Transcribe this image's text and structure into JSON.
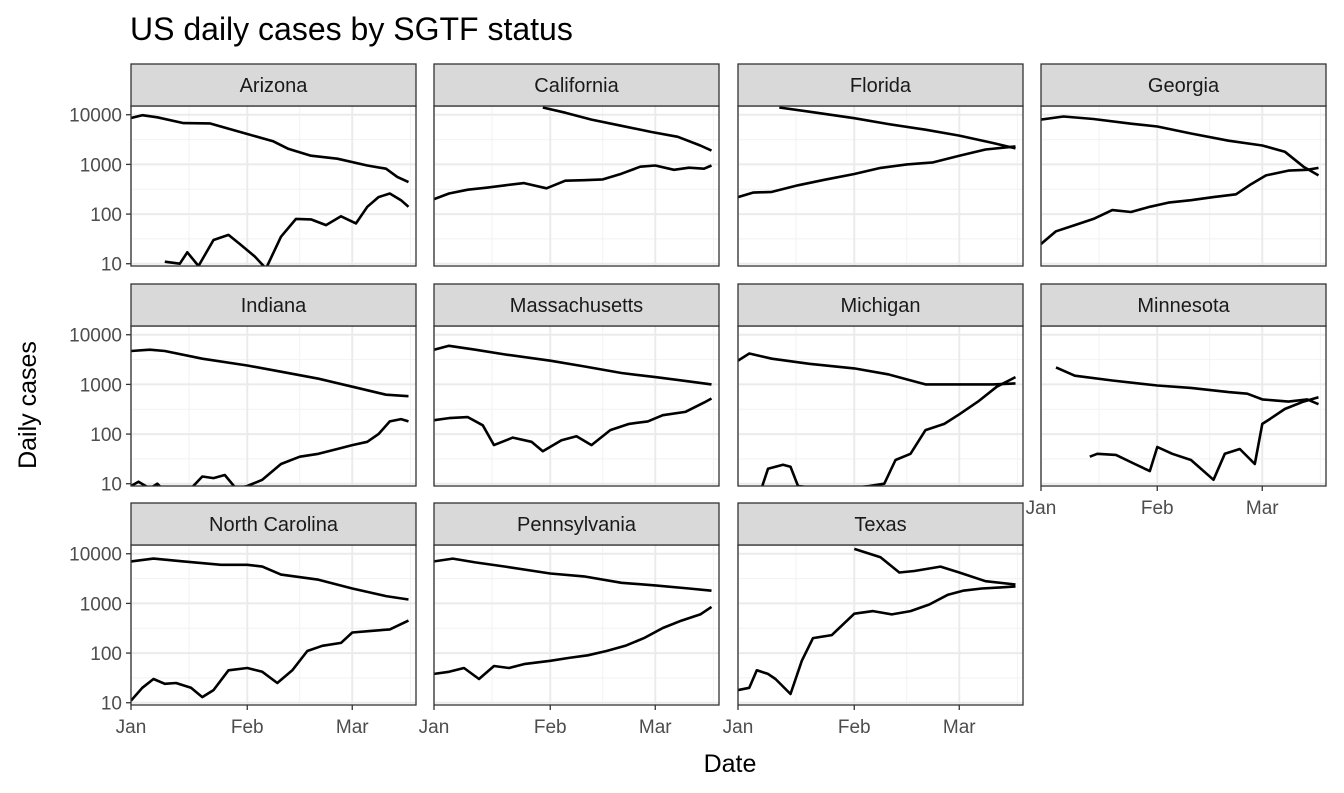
{
  "chart_data": {
    "type": "line",
    "title": "US daily cases by SGTF status",
    "xlabel": "Date",
    "ylabel": "Daily cases",
    "y_scale": "log10",
    "ylim": [
      9,
      15000
    ],
    "xlim": [
      "2021-01-01",
      "2021-03-18"
    ],
    "y_ticks": [
      10,
      100,
      1000,
      10000
    ],
    "y_tick_labels": [
      "10",
      "100",
      "1000",
      "10000"
    ],
    "x_ticks": [
      "2021-01-01",
      "2021-02-01",
      "2021-03-01"
    ],
    "x_tick_labels": [
      "Jan",
      "Feb",
      "Mar"
    ],
    "grid": true,
    "line_color": "#000000",
    "strip_color": "#d9d9d9",
    "facets": [
      {
        "name": "Arizona",
        "series": [
          {
            "x": [
              "2021-01-01",
              "2021-01-04",
              "2021-01-08",
              "2021-01-15",
              "2021-01-22",
              "2021-02-01",
              "2021-02-08",
              "2021-02-12",
              "2021-02-18",
              "2021-02-25",
              "2021-03-05",
              "2021-03-10",
              "2021-03-13",
              "2021-03-16"
            ],
            "y": [
              8600,
              9800,
              8900,
              6800,
              6700,
              4100,
              2900,
              2050,
              1500,
              1300,
              950,
              820,
              560,
              440
            ]
          },
          {
            "x": [
              "2021-01-10",
              "2021-01-14",
              "2021-01-16",
              "2021-01-19",
              "2021-01-23",
              "2021-01-27",
              "2021-01-30",
              "2021-02-03",
              "2021-02-06",
              "2021-02-10",
              "2021-02-14",
              "2021-02-18",
              "2021-02-22",
              "2021-02-26",
              "2021-03-02",
              "2021-03-05",
              "2021-03-08",
              "2021-03-11",
              "2021-03-14",
              "2021-03-16"
            ],
            "y": [
              11,
              10,
              17,
              9,
              30,
              38,
              25,
              14,
              8,
              35,
              80,
              78,
              60,
              90,
              65,
              140,
              220,
              260,
              190,
              140
            ]
          }
        ]
      },
      {
        "name": "California",
        "series": [
          {
            "x": [
              "2021-01-30",
              "2021-02-05",
              "2021-02-12",
              "2021-02-20",
              "2021-02-28",
              "2021-03-07",
              "2021-03-13",
              "2021-03-16"
            ],
            "y": [
              14000,
              11000,
              8000,
              6000,
              4500,
              3600,
              2400,
              1900
            ]
          },
          {
            "x": [
              "2021-01-01",
              "2021-01-05",
              "2021-01-10",
              "2021-01-15",
              "2021-01-20",
              "2021-01-25",
              "2021-01-31",
              "2021-02-05",
              "2021-02-10",
              "2021-02-15",
              "2021-02-20",
              "2021-02-25",
              "2021-03-01",
              "2021-03-06",
              "2021-03-10",
              "2021-03-14",
              "2021-03-16"
            ],
            "y": [
              200,
              260,
              310,
              340,
              380,
              420,
              330,
              470,
              480,
              500,
              650,
              900,
              950,
              780,
              860,
              820,
              950
            ]
          }
        ]
      },
      {
        "name": "Florida",
        "series": [
          {
            "x": [
              "2021-01-12",
              "2021-01-20",
              "2021-02-01",
              "2021-02-10",
              "2021-02-20",
              "2021-03-01",
              "2021-03-10",
              "2021-03-16"
            ],
            "y": [
              14000,
              11500,
              8500,
              6500,
              5000,
              3800,
              2700,
              2100
            ]
          },
          {
            "x": [
              "2021-01-01",
              "2021-01-05",
              "2021-01-10",
              "2021-01-17",
              "2021-01-24",
              "2021-02-01",
              "2021-02-08",
              "2021-02-15",
              "2021-02-22",
              "2021-03-01",
              "2021-03-08",
              "2021-03-16"
            ],
            "y": [
              220,
              270,
              280,
              380,
              490,
              640,
              850,
              1000,
              1100,
              1500,
              2000,
              2300
            ]
          }
        ]
      },
      {
        "name": "Georgia",
        "series": [
          {
            "x": [
              "2021-01-01",
              "2021-01-07",
              "2021-01-15",
              "2021-01-25",
              "2021-02-01",
              "2021-02-10",
              "2021-02-20",
              "2021-03-01",
              "2021-03-07",
              "2021-03-12",
              "2021-03-16"
            ],
            "y": [
              8000,
              9200,
              8200,
              6600,
              5800,
              4200,
              3000,
              2400,
              1800,
              900,
              600
            ]
          },
          {
            "x": [
              "2021-01-01",
              "2021-01-05",
              "2021-01-10",
              "2021-01-15",
              "2021-01-20",
              "2021-01-25",
              "2021-01-30",
              "2021-02-04",
              "2021-02-10",
              "2021-02-16",
              "2021-02-22",
              "2021-02-26",
              "2021-03-02",
              "2021-03-08",
              "2021-03-13",
              "2021-03-16"
            ],
            "y": [
              25,
              45,
              60,
              80,
              120,
              110,
              140,
              170,
              190,
              220,
              250,
              400,
              600,
              750,
              780,
              850
            ]
          }
        ]
      },
      {
        "name": "Indiana",
        "series": [
          {
            "x": [
              "2021-01-01",
              "2021-01-06",
              "2021-01-10",
              "2021-01-20",
              "2021-02-01",
              "2021-02-10",
              "2021-02-20",
              "2021-03-01",
              "2021-03-10",
              "2021-03-16"
            ],
            "y": [
              4700,
              5000,
              4700,
              3300,
              2400,
              1800,
              1300,
              900,
              620,
              580
            ]
          },
          {
            "x": [
              "2021-01-01",
              "2021-01-03",
              "2021-01-06",
              "2021-01-08",
              "2021-01-10",
              "2021-01-17",
              "2021-01-20",
              "2021-01-23",
              "2021-01-26",
              "2021-01-29",
              "2021-02-01",
              "2021-02-05",
              "2021-02-10",
              "2021-02-15",
              "2021-02-20",
              "2021-02-25",
              "2021-03-01",
              "2021-03-05",
              "2021-03-08",
              "2021-03-11",
              "2021-03-14",
              "2021-03-16"
            ],
            "y": [
              9,
              11,
              8,
              10,
              7,
              8,
              14,
              13,
              15,
              8,
              9,
              12,
              25,
              35,
              40,
              50,
              60,
              70,
              100,
              180,
              200,
              180
            ]
          }
        ]
      },
      {
        "name": "Massachusetts",
        "series": [
          {
            "x": [
              "2021-01-01",
              "2021-01-05",
              "2021-01-12",
              "2021-01-20",
              "2021-02-01",
              "2021-02-10",
              "2021-02-20",
              "2021-03-01",
              "2021-03-10",
              "2021-03-16"
            ],
            "y": [
              5000,
              6000,
              5000,
              4000,
              3000,
              2300,
              1700,
              1400,
              1150,
              1000
            ]
          },
          {
            "x": [
              "2021-01-01",
              "2021-01-05",
              "2021-01-10",
              "2021-01-14",
              "2021-01-17",
              "2021-01-22",
              "2021-01-27",
              "2021-01-30",
              "2021-02-04",
              "2021-02-08",
              "2021-02-12",
              "2021-02-17",
              "2021-02-22",
              "2021-02-27",
              "2021-03-03",
              "2021-03-09",
              "2021-03-14",
              "2021-03-16"
            ],
            "y": [
              190,
              210,
              220,
              150,
              60,
              85,
              70,
              45,
              75,
              90,
              60,
              120,
              160,
              180,
              240,
              280,
              430,
              520
            ]
          }
        ]
      },
      {
        "name": "Michigan",
        "series": [
          {
            "x": [
              "2021-01-01",
              "2021-01-04",
              "2021-01-10",
              "2021-01-20",
              "2021-02-01",
              "2021-02-10",
              "2021-02-20",
              "2021-03-01",
              "2021-03-10",
              "2021-03-16"
            ],
            "y": [
              3000,
              4200,
              3300,
              2600,
              2100,
              1600,
              1000,
              1000,
              1000,
              1050
            ]
          },
          {
            "x": [
              "2021-01-07",
              "2021-01-09",
              "2021-01-13",
              "2021-01-15",
              "2021-01-17",
              "2021-01-23",
              "2021-01-30",
              "2021-02-05",
              "2021-02-09",
              "2021-02-12",
              "2021-02-16",
              "2021-02-20",
              "2021-02-25",
              "2021-03-01",
              "2021-03-06",
              "2021-03-11",
              "2021-03-16"
            ],
            "y": [
              7,
              20,
              24,
              22,
              9,
              8,
              8,
              9,
              10,
              30,
              40,
              120,
              160,
              250,
              450,
              900,
              1400
            ]
          }
        ]
      },
      {
        "name": "Minnesota",
        "series": [
          {
            "x": [
              "2021-01-05",
              "2021-01-10",
              "2021-01-20",
              "2021-02-01",
              "2021-02-10",
              "2021-02-20",
              "2021-02-25",
              "2021-03-01",
              "2021-03-08",
              "2021-03-13",
              "2021-03-16"
            ],
            "y": [
              2200,
              1500,
              1200,
              950,
              850,
              700,
              650,
              500,
              450,
              500,
              400
            ]
          },
          {
            "x": [
              "2021-01-14",
              "2021-01-16",
              "2021-01-21",
              "2021-01-26",
              "2021-01-30",
              "2021-02-01",
              "2021-02-05",
              "2021-02-10",
              "2021-02-16",
              "2021-02-19",
              "2021-02-23",
              "2021-02-27",
              "2021-03-01",
              "2021-03-03",
              "2021-03-07",
              "2021-03-12",
              "2021-03-16"
            ],
            "y": [
              35,
              40,
              38,
              25,
              18,
              55,
              40,
              30,
              12,
              40,
              50,
              25,
              160,
              200,
              320,
              450,
              550
            ]
          }
        ]
      },
      {
        "name": "North Carolina",
        "series": [
          {
            "x": [
              "2021-01-01",
              "2021-01-07",
              "2021-01-15",
              "2021-01-25",
              "2021-02-01",
              "2021-02-05",
              "2021-02-10",
              "2021-02-20",
              "2021-03-01",
              "2021-03-10",
              "2021-03-16"
            ],
            "y": [
              7000,
              8000,
              7000,
              6000,
              6000,
              5500,
              3800,
              3000,
              2000,
              1400,
              1200
            ]
          },
          {
            "x": [
              "2021-01-01",
              "2021-01-04",
              "2021-01-07",
              "2021-01-10",
              "2021-01-13",
              "2021-01-17",
              "2021-01-20",
              "2021-01-23",
              "2021-01-27",
              "2021-02-01",
              "2021-02-05",
              "2021-02-09",
              "2021-02-13",
              "2021-02-17",
              "2021-02-21",
              "2021-02-26",
              "2021-03-01",
              "2021-03-06",
              "2021-03-11",
              "2021-03-16"
            ],
            "y": [
              11,
              20,
              30,
              24,
              25,
              20,
              13,
              18,
              45,
              50,
              42,
              25,
              45,
              110,
              140,
              160,
              260,
              280,
              300,
              450
            ]
          }
        ]
      },
      {
        "name": "Pennsylvania",
        "series": [
          {
            "x": [
              "2021-01-01",
              "2021-01-06",
              "2021-01-12",
              "2021-01-20",
              "2021-02-01",
              "2021-02-10",
              "2021-02-20",
              "2021-03-01",
              "2021-03-10",
              "2021-03-16"
            ],
            "y": [
              7000,
              8000,
              6700,
              5500,
              4000,
              3500,
              2600,
              2300,
              2000,
              1800
            ]
          },
          {
            "x": [
              "2021-01-01",
              "2021-01-05",
              "2021-01-09",
              "2021-01-13",
              "2021-01-17",
              "2021-01-21",
              "2021-01-25",
              "2021-02-01",
              "2021-02-06",
              "2021-02-11",
              "2021-02-16",
              "2021-02-21",
              "2021-02-26",
              "2021-03-03",
              "2021-03-08",
              "2021-03-13",
              "2021-03-16"
            ],
            "y": [
              38,
              42,
              50,
              30,
              55,
              50,
              60,
              70,
              80,
              90,
              110,
              140,
              200,
              320,
              450,
              600,
              850
            ]
          }
        ]
      },
      {
        "name": "Texas",
        "series": [
          {
            "x": [
              "2021-02-01",
              "2021-02-08",
              "2021-02-13",
              "2021-02-17",
              "2021-02-24",
              "2021-03-01",
              "2021-03-08",
              "2021-03-16"
            ],
            "y": [
              12500,
              8500,
              4200,
              4500,
              5500,
              4200,
              2800,
              2400
            ]
          },
          {
            "x": [
              "2021-01-01",
              "2021-01-04",
              "2021-01-06",
              "2021-01-09",
              "2021-01-11",
              "2021-01-15",
              "2021-01-18",
              "2021-01-21",
              "2021-01-26",
              "2021-02-01",
              "2021-02-06",
              "2021-02-11",
              "2021-02-16",
              "2021-02-21",
              "2021-02-26",
              "2021-03-02",
              "2021-03-07",
              "2021-03-12",
              "2021-03-16"
            ],
            "y": [
              18,
              20,
              45,
              38,
              30,
              15,
              70,
              200,
              230,
              620,
              700,
              600,
              700,
              950,
              1500,
              1800,
              2000,
              2100,
              2200
            ]
          }
        ]
      }
    ]
  }
}
